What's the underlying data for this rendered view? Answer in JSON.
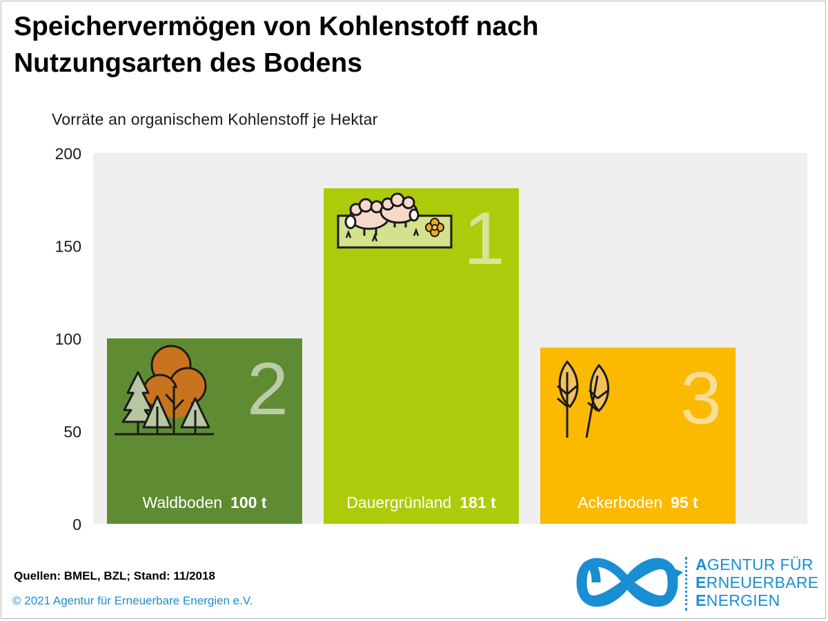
{
  "title": {
    "line1": "Speichervermögen von Kohlenstoff nach",
    "line2": "Nutzungsarten des Bodens"
  },
  "subtitle": "Vorräte an organischem Kohlenstoff je Hektar",
  "colors": {
    "plot_background": "#efefef",
    "waldboden": "#5f8c32",
    "dauergruenland": "#adcb0a",
    "ackerboden": "#fbb900",
    "rank_number": "#f4f4f0",
    "brand_blue": "#1a8ed3"
  },
  "chart_data": {
    "type": "bar",
    "title": "Speichervermögen von Kohlenstoff nach Nutzungsarten des Bodens",
    "ylabel": "Vorräte an organischem Kohlenstoff je Hektar",
    "ylim": [
      0,
      200
    ],
    "yticks": [
      "0",
      "50",
      "100",
      "150",
      "200"
    ],
    "categories": [
      "Waldboden",
      "Dauergrünland",
      "Ackerboden"
    ],
    "values": [
      100,
      181,
      95
    ],
    "value_labels": [
      "100 t",
      "181 t",
      "95 t"
    ],
    "ranks": [
      "2",
      "1",
      "3"
    ],
    "icons": [
      "forest-icon",
      "pasture-sheep-icon",
      "wheat-icon"
    ],
    "grid": false
  },
  "footer": {
    "sources": "Quellen: BMEL, BZL; Stand: 11/2018",
    "copyright": "© 2021 Agentur für Erneuerbare Energien e.V."
  },
  "logo": {
    "line1_initial": "A",
    "line1_rest": "GENTUR FÜR",
    "line2_initial": "E",
    "line2_rest": "RNEUERBARE",
    "line3_initial": "E",
    "line3_rest": "NERGIEN"
  }
}
